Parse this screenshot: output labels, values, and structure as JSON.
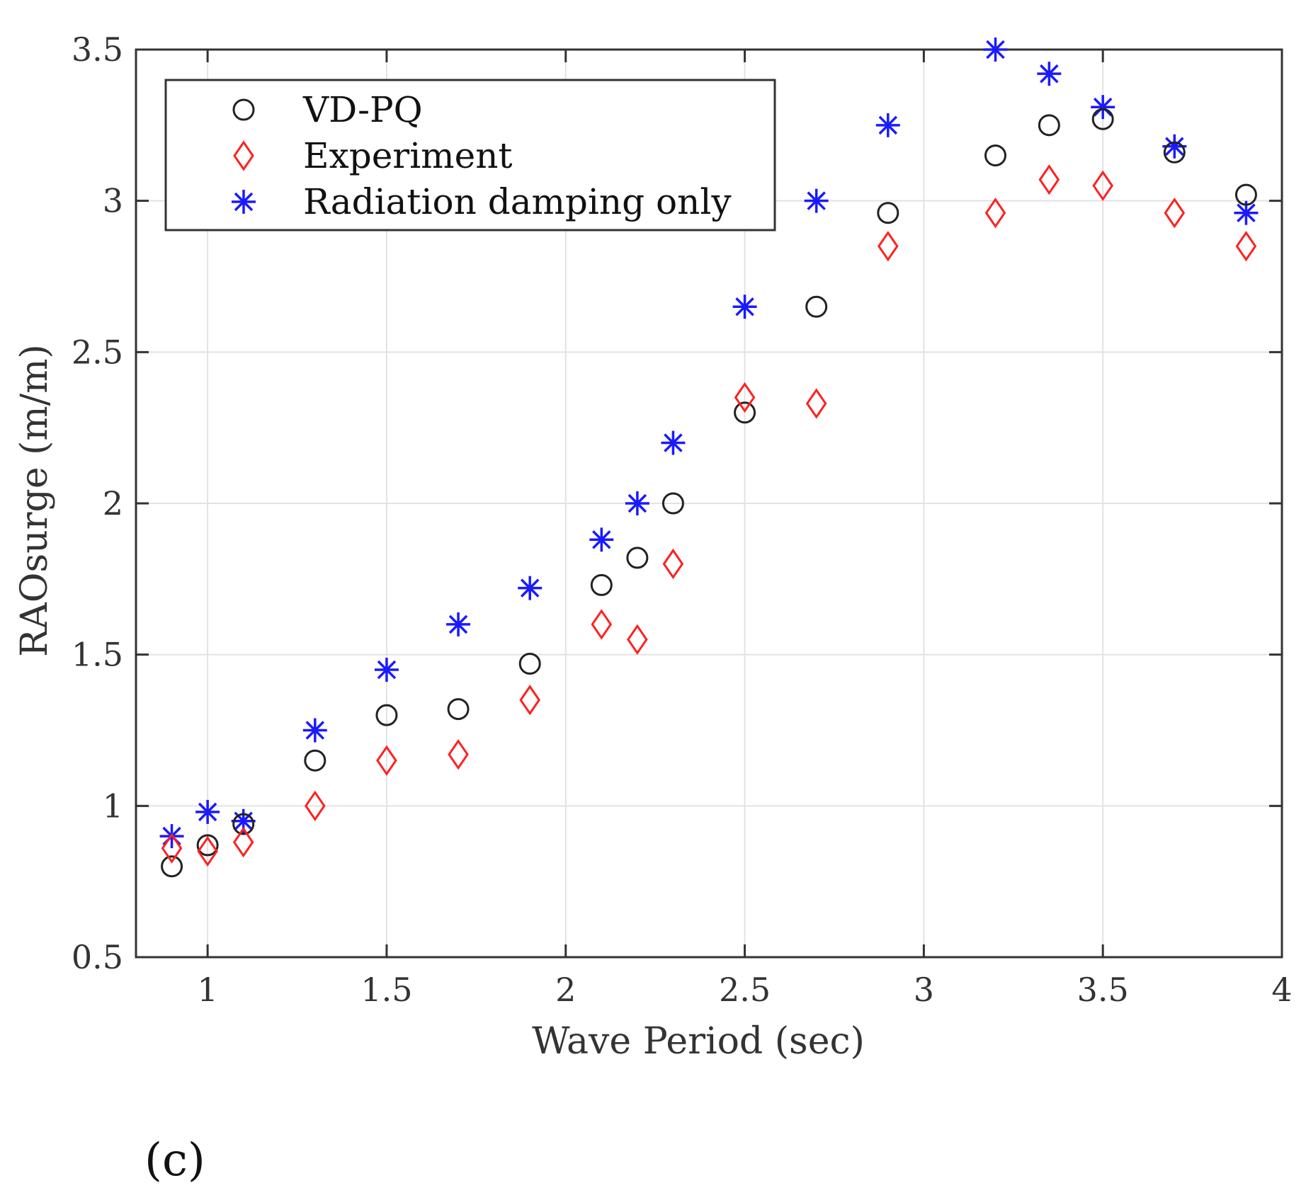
{
  "chart_data": {
    "type": "scatter",
    "title": "",
    "xlabel": "Wave Period (sec)",
    "ylabel": "RAOsurge (m/m)",
    "xlim": [
      0.8,
      4
    ],
    "ylim": [
      0.5,
      3.5
    ],
    "xticks": [
      1,
      1.5,
      2,
      2.5,
      3,
      3.5,
      4
    ],
    "xtick_labels": [
      "1",
      "1.5",
      "2",
      "2.5",
      "3",
      "3.5",
      "4"
    ],
    "yticks": [
      0.5,
      1,
      1.5,
      2,
      2.5,
      3,
      3.5
    ],
    "ytick_labels": [
      "0.5",
      "1",
      "1.5",
      "2",
      "2.5",
      "3",
      "3.5"
    ],
    "grid": true,
    "legend_position": "top-left",
    "panel_label": "(c)",
    "series": [
      {
        "name": "VD-PQ",
        "marker": "circle",
        "color": "#222222",
        "x": [
          0.9,
          1.0,
          1.1,
          1.3,
          1.5,
          1.7,
          1.9,
          2.1,
          2.2,
          2.3,
          2.5,
          2.7,
          2.9,
          3.2,
          3.35,
          3.5,
          3.7,
          3.9
        ],
        "y": [
          0.8,
          0.87,
          0.94,
          1.15,
          1.3,
          1.32,
          1.47,
          1.73,
          1.82,
          2.0,
          2.3,
          2.65,
          2.96,
          3.15,
          3.25,
          3.27,
          3.16,
          3.02
        ]
      },
      {
        "name": "Experiment",
        "marker": "diamond",
        "color": "#ff2020",
        "x": [
          0.9,
          1.0,
          1.1,
          1.3,
          1.5,
          1.7,
          1.9,
          2.1,
          2.2,
          2.3,
          2.5,
          2.7,
          2.9,
          3.2,
          3.35,
          3.5,
          3.7,
          3.9
        ],
        "y": [
          0.86,
          0.85,
          0.88,
          1.0,
          1.15,
          1.17,
          1.35,
          1.6,
          1.55,
          1.8,
          2.35,
          2.33,
          2.85,
          2.96,
          3.07,
          3.05,
          2.96,
          2.85
        ]
      },
      {
        "name": "Radiation damping only",
        "marker": "asterisk",
        "color": "#1a1aff",
        "x": [
          0.9,
          1.0,
          1.1,
          1.3,
          1.5,
          1.7,
          1.9,
          2.1,
          2.2,
          2.3,
          2.5,
          2.7,
          2.9,
          3.2,
          3.35,
          3.5,
          3.7,
          3.9
        ],
        "y": [
          0.9,
          0.98,
          0.95,
          1.25,
          1.45,
          1.6,
          1.72,
          1.88,
          2.0,
          2.2,
          2.65,
          3.0,
          3.25,
          3.5,
          3.42,
          3.31,
          3.18,
          2.96
        ]
      }
    ]
  }
}
